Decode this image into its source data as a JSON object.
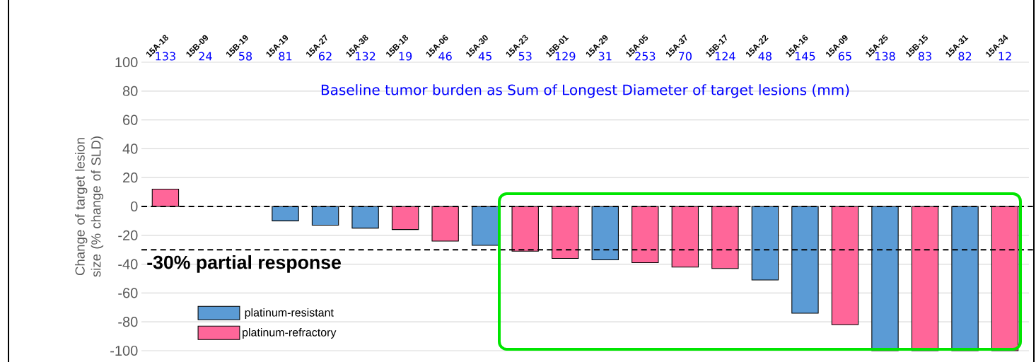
{
  "chart_data": {
    "type": "bar",
    "categories": [
      "15A-18",
      "15B-09",
      "15B-19",
      "15A-19",
      "15A-27",
      "15A-38",
      "15B-18",
      "15A-06",
      "15A-30",
      "15A-23",
      "15B-01",
      "15A-29",
      "15A-05",
      "15A-37",
      "15B-17",
      "15A-22",
      "15A-16",
      "15A-09",
      "15A-25",
      "15B-15",
      "15A-31",
      "15A-34"
    ],
    "series": [
      {
        "name": "platinum-resistant",
        "color": "#5b9bd5",
        "values": [
          null,
          null,
          null,
          -10,
          -13,
          -15,
          null,
          null,
          -27,
          null,
          null,
          -37,
          null,
          null,
          null,
          -51,
          -74,
          null,
          -100,
          null,
          -100,
          null
        ]
      },
      {
        "name": "platinum-refractory",
        "color": "#ff6699",
        "values": [
          12,
          null,
          null,
          null,
          null,
          null,
          -16,
          -24,
          null,
          -31,
          -36,
          null,
          -39,
          -42,
          -43,
          null,
          null,
          -82,
          null,
          -100,
          null,
          -100
        ]
      }
    ],
    "ylabel": "Change of target lesion size (% change of SLD)",
    "ylim": [
      -100,
      100
    ],
    "yticks": [
      -100,
      -80,
      -60,
      -40,
      -20,
      0,
      20,
      40,
      60,
      80,
      100
    ],
    "grid": "y",
    "legend": "bottom left",
    "ref_lines": [
      {
        "axis": "y",
        "value": 0,
        "line_style": "dashed",
        "color": "#000000"
      },
      {
        "axis": "y",
        "value": -30,
        "label": "-30% partial response",
        "line_style": "dashed",
        "color": "#000000"
      }
    ],
    "annotations": [
      "Baseline tumor burden as Sum of Longest Diameter of target lesions (mm)",
      "133",
      "24",
      "58",
      "81",
      "62",
      "132",
      "19",
      "46",
      "45",
      "53",
      "129",
      "31",
      "253",
      "70",
      "124",
      "48",
      "145",
      "65",
      "138",
      "83",
      "82",
      "12"
    ]
  }
}
